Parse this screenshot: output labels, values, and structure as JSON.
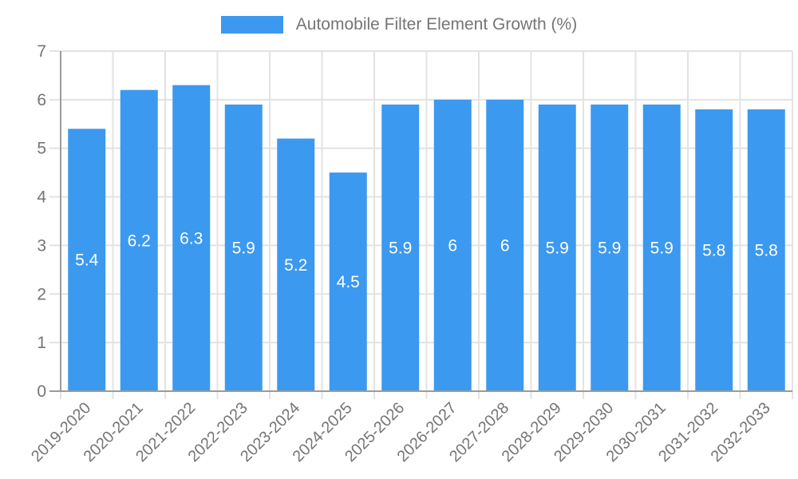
{
  "chart_data": {
    "type": "bar",
    "title": "Automobile Filter Element Growth (%)",
    "legend": {
      "position": "top",
      "label": "Automobile Filter Element Growth (%)"
    },
    "categories": [
      "2019-2020",
      "2020-2021",
      "2021-2022",
      "2022-2023",
      "2023-2024",
      "2024-2025",
      "2025-2026",
      "2026-2027",
      "2027-2028",
      "2028-2029",
      "2029-2030",
      "2030-2031",
      "2031-2032",
      "2032-2033"
    ],
    "values": [
      5.4,
      6.2,
      6.3,
      5.9,
      5.2,
      4.5,
      5.9,
      6,
      6,
      5.9,
      5.9,
      5.9,
      5.8,
      5.8
    ],
    "xlabel": "",
    "ylabel": "",
    "ylim": [
      0,
      7
    ],
    "yticks": [
      0,
      1,
      2,
      3,
      4,
      5,
      6,
      7
    ],
    "grid": true,
    "bar_color": "#3C99F0",
    "value_label_color": "#ffffff",
    "grid_color": "#E3E3E3",
    "axis_color": "#9B9B9B",
    "tick_label_color": "#757575"
  }
}
